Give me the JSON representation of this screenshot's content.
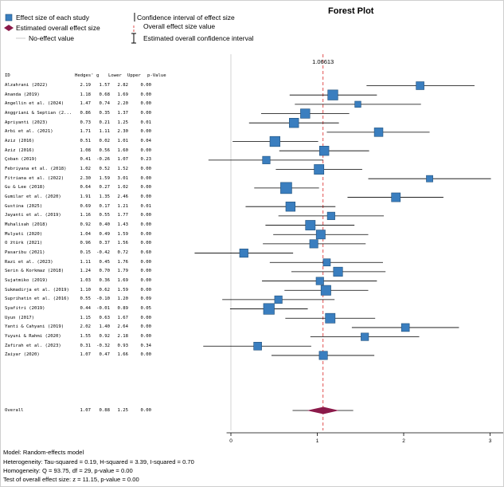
{
  "title": "Forest Plot",
  "legend": {
    "study_effect": "Effect size of each study",
    "overall_effect": "Estimated overall effect size",
    "no_effect": "No-effect value",
    "ci_effect": "Confidence interval of effect size",
    "overall_value": "Overall effect size value",
    "overall_ci": "Estimated overall confidence interval"
  },
  "colors": {
    "box": "#3a7ebf",
    "diamond": "#8b1a4a",
    "ref_line": "#e05050",
    "zero_line": "#c8c8c8"
  },
  "columns": {
    "id": "ID",
    "g": "Hedges' g",
    "lower": "Lower",
    "upper": "Upper",
    "p": "p-Value"
  },
  "chart_data": {
    "type": "forest",
    "title": "Forest Plot",
    "xlim": [
      -0.05,
      3.0
    ],
    "x_ticks": [
      "0",
      "1",
      "2",
      "3"
    ],
    "overall_label": "1.06613",
    "overall_value": 1.06613,
    "studies": [
      {
        "id": "Alzahrani (2022)",
        "g": "2.19",
        "lower": "1.57",
        "upper": "2.82",
        "p": "0.00"
      },
      {
        "id": "Ananda (2019)",
        "g": "1.18",
        "lower": "0.68",
        "upper": "1.69",
        "p": "0.00"
      },
      {
        "id": "Angellin et al. (2024)",
        "g": "1.47",
        "lower": "0.74",
        "upper": "2.20",
        "p": "0.00"
      },
      {
        "id": "Anggriani & Septian (2...",
        "g": "0.86",
        "lower": "0.35",
        "upper": "1.37",
        "p": "0.00"
      },
      {
        "id": "Apriyanti (2023)",
        "g": "0.73",
        "lower": "0.21",
        "upper": "1.25",
        "p": "0.01"
      },
      {
        "id": "Arbi et al. (2021)",
        "g": "1.71",
        "lower": "1.11",
        "upper": "2.30",
        "p": "0.00"
      },
      {
        "id": "Aziz (2016)",
        "g": "0.51",
        "lower": "0.02",
        "upper": "1.01",
        "p": "0.04"
      },
      {
        "id": "Aziz (2016)",
        "g": "1.08",
        "lower": "0.56",
        "upper": "1.60",
        "p": "0.00"
      },
      {
        "id": "Çoban (2019)",
        "g": "0.41",
        "lower": "-0.26",
        "upper": "1.07",
        "p": "0.23"
      },
      {
        "id": "Febriyana et al. (2018)",
        "g": "1.02",
        "lower": "0.52",
        "upper": "1.52",
        "p": "0.00"
      },
      {
        "id": "Fitriana et al. (2022)",
        "g": "2.30",
        "lower": "1.59",
        "upper": "3.01",
        "p": "0.00"
      },
      {
        "id": "Gu & Lee (2018)",
        "g": "0.64",
        "lower": "0.27",
        "upper": "1.02",
        "p": "0.00"
      },
      {
        "id": "Gumilar et al. (2020)",
        "g": "1.91",
        "lower": "1.35",
        "upper": "2.46",
        "p": "0.00"
      },
      {
        "id": "Gustina (2025)",
        "g": "0.69",
        "lower": "0.17",
        "upper": "1.21",
        "p": "0.01"
      },
      {
        "id": "Jayanti et al. (2019)",
        "g": "1.16",
        "lower": "0.55",
        "upper": "1.77",
        "p": "0.00"
      },
      {
        "id": "Muhalisah (2018)",
        "g": "0.92",
        "lower": "0.40",
        "upper": "1.43",
        "p": "0.00"
      },
      {
        "id": "Mulyati (2020)",
        "g": "1.04",
        "lower": "0.49",
        "upper": "1.59",
        "p": "0.00"
      },
      {
        "id": "O ̈ztürk (2021)",
        "g": "0.96",
        "lower": "0.37",
        "upper": "1.56",
        "p": "0.00"
      },
      {
        "id": "Pasaribu (2021)",
        "g": "0.15",
        "lower": "-0.42",
        "upper": "0.72",
        "p": "0.60"
      },
      {
        "id": "Razi et al. (2023)",
        "g": "1.11",
        "lower": "0.45",
        "upper": "1.76",
        "p": "0.00"
      },
      {
        "id": "Serin & Korkmaz (2018)",
        "g": "1.24",
        "lower": "0.70",
        "upper": "1.79",
        "p": "0.00"
      },
      {
        "id": "Sujatmiko (2019)",
        "g": "1.03",
        "lower": "0.36",
        "upper": "1.69",
        "p": "0.00"
      },
      {
        "id": "Sukmadirja et al. (2019)",
        "g": "1.10",
        "lower": "0.62",
        "upper": "1.59",
        "p": "0.00"
      },
      {
        "id": "Suprihatin et al. (2016)",
        "g": "0.55",
        "lower": "-0.10",
        "upper": "1.20",
        "p": "0.09"
      },
      {
        "id": "Syafitri (2019)",
        "g": "0.44",
        "lower": "-0.01",
        "upper": "0.89",
        "p": "0.05"
      },
      {
        "id": "Uyun (2017)",
        "g": "1.15",
        "lower": "0.63",
        "upper": "1.67",
        "p": "0.00"
      },
      {
        "id": "Yanti & Cahyani (2019)",
        "g": "2.02",
        "lower": "1.40",
        "upper": "2.64",
        "p": "0.00"
      },
      {
        "id": "Yuyuni & Rahmi (2020)",
        "g": "1.55",
        "lower": "0.92",
        "upper": "2.18",
        "p": "0.00"
      },
      {
        "id": "Zafirah et al. (2023)",
        "g": "0.31",
        "lower": "-0.32",
        "upper": "0.93",
        "p": "0.34"
      },
      {
        "id": "Zaiyar (2020)",
        "g": "1.07",
        "lower": "0.47",
        "upper": "1.66",
        "p": "0.00"
      }
    ],
    "weights": [
      0.55,
      0.85,
      0.3,
      0.75,
      0.75,
      0.65,
      0.85,
      0.75,
      0.5,
      0.8,
      0.35,
      1.0,
      0.68,
      0.75,
      0.5,
      0.8,
      0.7,
      0.6,
      0.62,
      0.45,
      0.72,
      0.5,
      0.82,
      0.5,
      0.95,
      0.8,
      0.55,
      0.5,
      0.55,
      0.6
    ],
    "overall": {
      "id": "Overall",
      "g": "1.07",
      "lower": "0.88",
      "upper": "1.25",
      "p": "0.00"
    }
  },
  "footer": {
    "model": "Model: Random-effects model",
    "heterogeneity": "Heterogeneity: Tau-squared = 0.19, H-squared = 3.39, I-squared = 0.70",
    "homogeneity": "Homogeneity: Q = 93.75, df = 29, p-value = 0.00",
    "test": "Test of overall effect size: z = 11.15, p-value = 0.00"
  }
}
